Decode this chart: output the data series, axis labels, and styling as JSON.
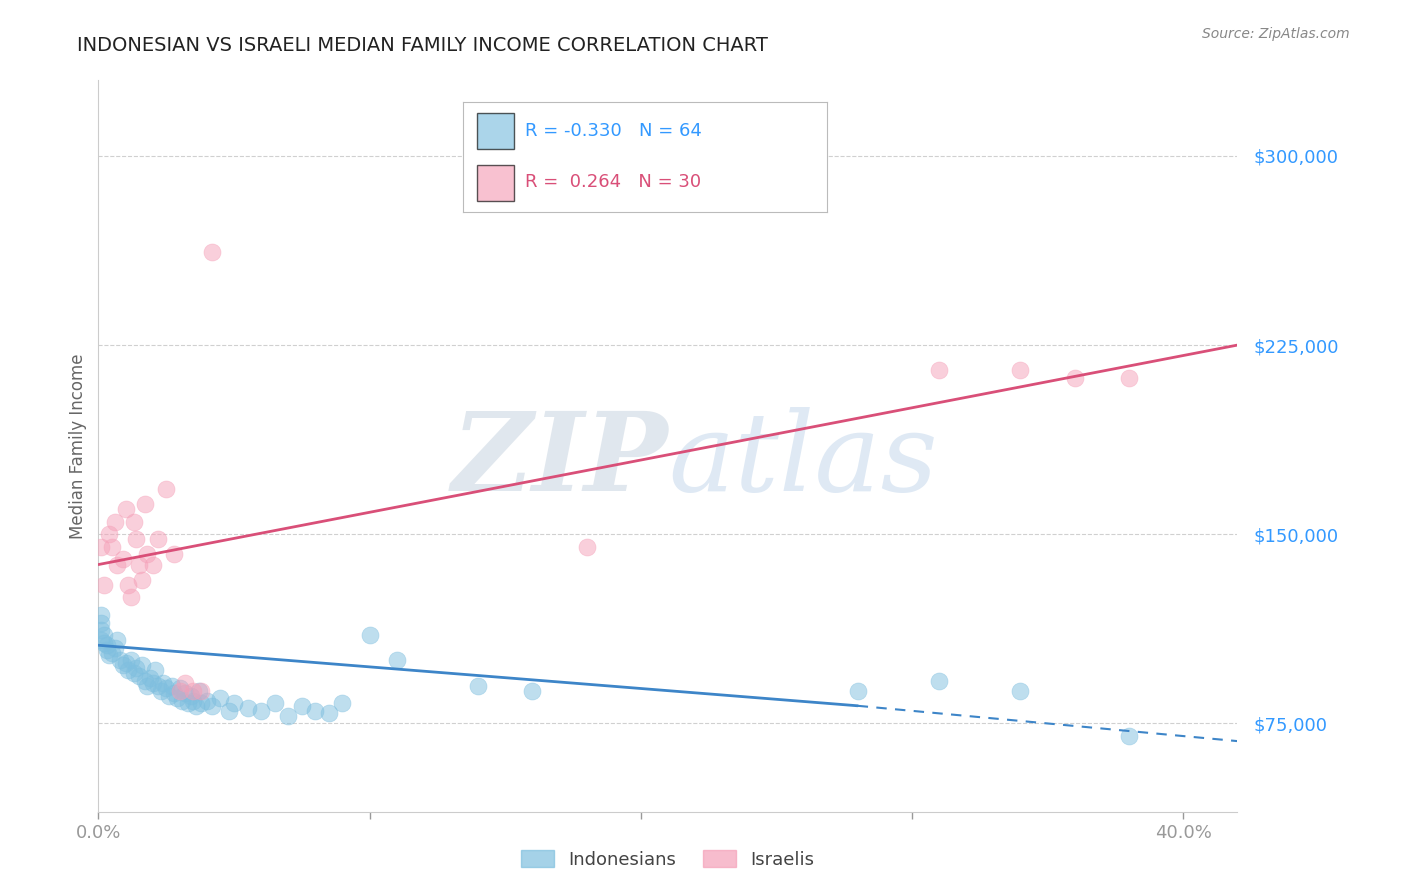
{
  "title": "INDONESIAN VS ISRAELI MEDIAN FAMILY INCOME CORRELATION CHART",
  "source": "Source: ZipAtlas.com",
  "ylabel": "Median Family Income",
  "xlim": [
    0.0,
    0.42
  ],
  "ylim": [
    40000,
    330000
  ],
  "yticks": [
    75000,
    150000,
    225000,
    300000
  ],
  "ytick_labels": [
    "$75,000",
    "$150,000",
    "$225,000",
    "$300,000"
  ],
  "xticks": [
    0.0,
    0.1,
    0.2,
    0.3,
    0.4
  ],
  "xtick_labels": [
    "0.0%",
    "",
    "",
    "",
    "40.0%"
  ],
  "watermark": "ZIPatlas",
  "background_color": "#ffffff",
  "indonesian_color": "#7fbfdf",
  "israeli_color": "#f5a0b8",
  "indonesian_line_color": "#3d85c8",
  "israeli_line_color": "#d94f78",
  "R_indonesian": -0.33,
  "N_indonesian": 64,
  "R_israeli": 0.264,
  "N_israeli": 30,
  "indonesian_scatter_x": [
    0.001,
    0.001,
    0.001,
    0.001,
    0.002,
    0.002,
    0.003,
    0.003,
    0.004,
    0.005,
    0.006,
    0.007,
    0.008,
    0.009,
    0.01,
    0.011,
    0.012,
    0.013,
    0.014,
    0.015,
    0.016,
    0.017,
    0.018,
    0.019,
    0.02,
    0.021,
    0.022,
    0.023,
    0.024,
    0.025,
    0.026,
    0.027,
    0.028,
    0.029,
    0.03,
    0.031,
    0.032,
    0.033,
    0.034,
    0.035,
    0.036,
    0.037,
    0.038,
    0.04,
    0.042,
    0.045,
    0.048,
    0.05,
    0.055,
    0.06,
    0.065,
    0.07,
    0.075,
    0.08,
    0.085,
    0.09,
    0.1,
    0.11,
    0.14,
    0.16,
    0.28,
    0.31,
    0.34,
    0.38
  ],
  "indonesian_scatter_y": [
    108000,
    112000,
    115000,
    118000,
    110000,
    107000,
    106000,
    104000,
    102000,
    103000,
    105000,
    108000,
    100000,
    98000,
    99000,
    96000,
    100000,
    95000,
    97000,
    94000,
    98000,
    92000,
    90000,
    93000,
    91000,
    96000,
    90000,
    88000,
    91000,
    89000,
    86000,
    90000,
    87000,
    85000,
    89000,
    84000,
    87000,
    83000,
    86000,
    84000,
    82000,
    88000,
    83000,
    84000,
    82000,
    85000,
    80000,
    83000,
    81000,
    80000,
    83000,
    78000,
    82000,
    80000,
    79000,
    83000,
    110000,
    100000,
    90000,
    88000,
    88000,
    92000,
    88000,
    70000
  ],
  "israeli_scatter_x": [
    0.001,
    0.002,
    0.004,
    0.005,
    0.006,
    0.007,
    0.009,
    0.01,
    0.011,
    0.012,
    0.013,
    0.014,
    0.015,
    0.016,
    0.017,
    0.018,
    0.02,
    0.022,
    0.025,
    0.028,
    0.03,
    0.032,
    0.035,
    0.038,
    0.042,
    0.18,
    0.31,
    0.34,
    0.36,
    0.38
  ],
  "israeli_scatter_y": [
    145000,
    130000,
    150000,
    145000,
    155000,
    138000,
    140000,
    160000,
    130000,
    125000,
    155000,
    148000,
    138000,
    132000,
    162000,
    142000,
    138000,
    148000,
    168000,
    142000,
    88000,
    91000,
    88000,
    88000,
    262000,
    145000,
    215000,
    215000,
    212000,
    212000
  ],
  "indo_trend_x0": 0.0,
  "indo_trend_x1": 0.28,
  "indo_trend_x2": 0.42,
  "indo_trend_y0": 106000,
  "indo_trend_y1": 82000,
  "indo_trend_y2": 68000,
  "isr_trend_x0": 0.0,
  "isr_trend_x1": 0.42,
  "isr_trend_y0": 138000,
  "isr_trend_y1": 225000
}
